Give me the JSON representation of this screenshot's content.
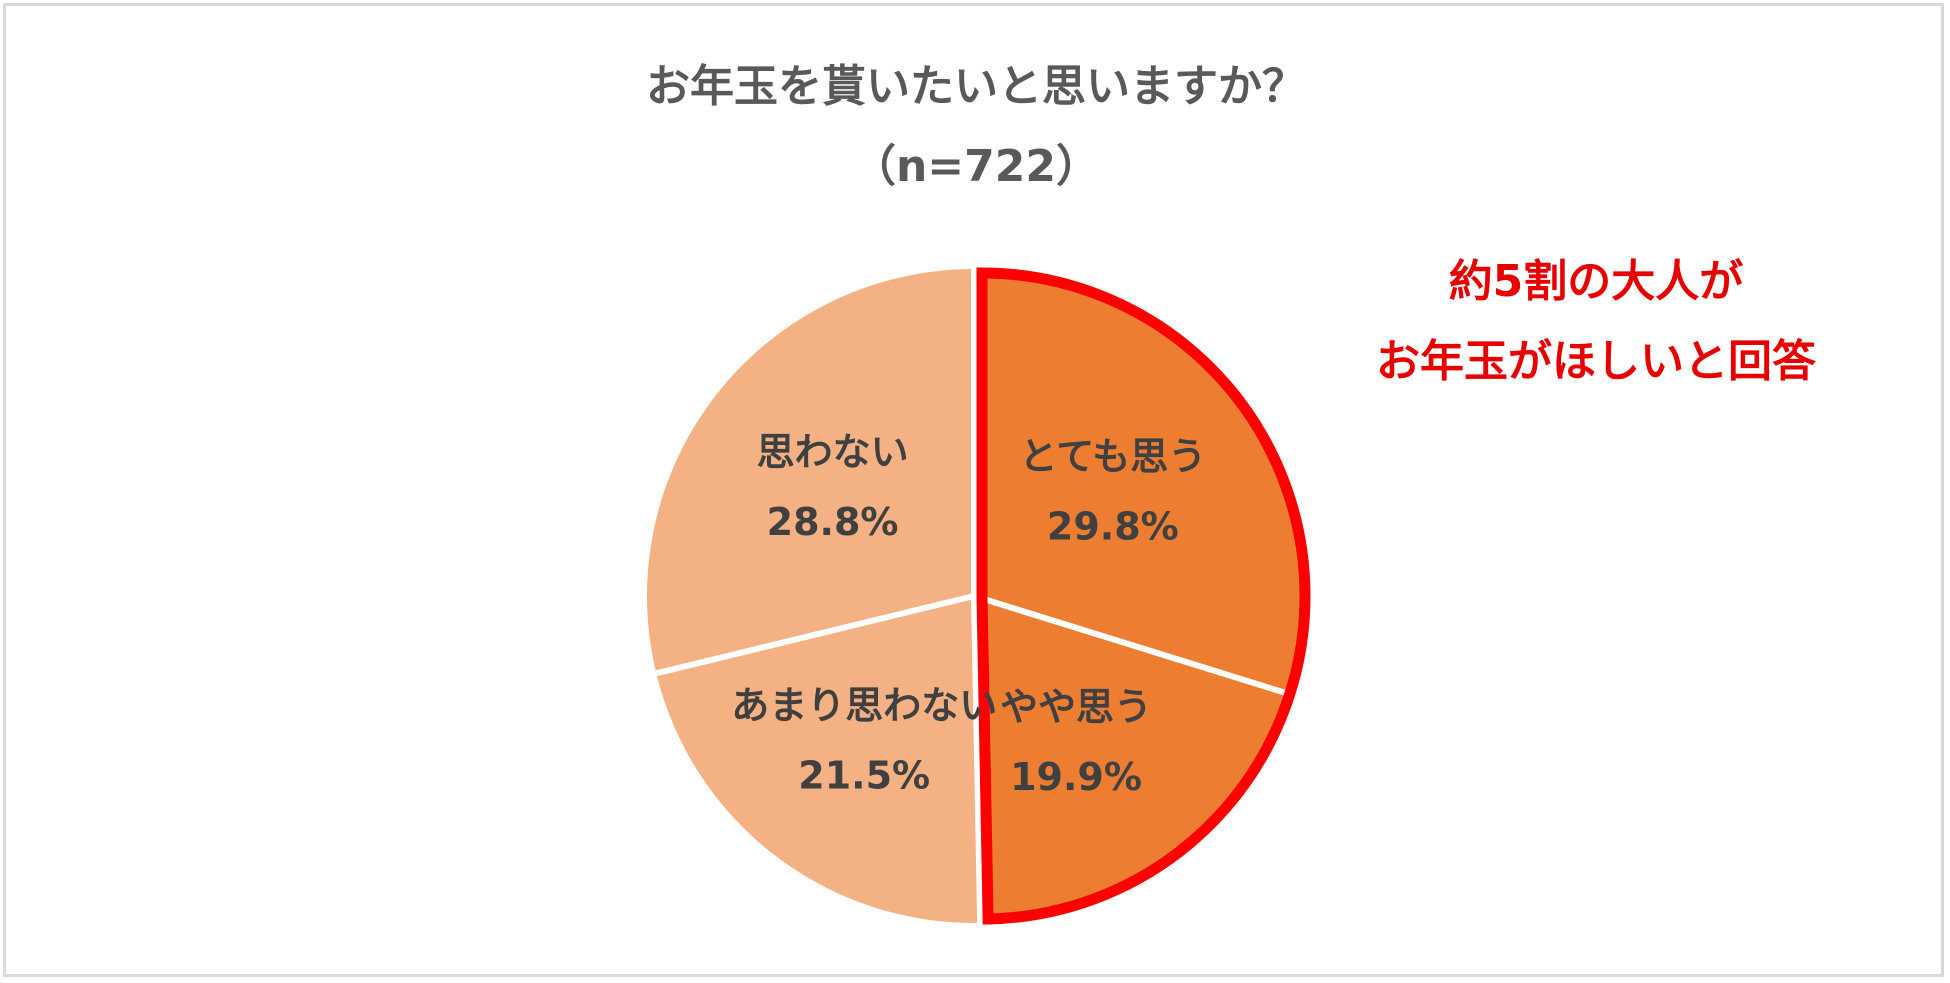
{
  "chart_data": {
    "type": "pie",
    "title": "お年玉を貰いたいと思いますか？",
    "subtitle": "（n=722）",
    "slices": [
      {
        "label": "とても思う",
        "value": 29.8,
        "value_label": "29.8%",
        "color": "#ED7D31"
      },
      {
        "label": "やや思う",
        "value": 19.9,
        "value_label": "19.9%",
        "color": "#ED7D31"
      },
      {
        "label": "あまり思わない",
        "value": 21.5,
        "value_label": "21.5%",
        "color": "#F4B183"
      },
      {
        "label": "思わない",
        "value": 28.8,
        "value_label": "28.8%",
        "color": "#F4B183"
      }
    ],
    "start_angle": "12 o'clock",
    "direction": "clockwise",
    "highlight": {
      "slices": [
        "とても思う",
        "やや思う"
      ],
      "outline_color": "#FF0000"
    },
    "annotation": {
      "lines": [
        "約5割の大人が",
        "お年玉がほしいと回答"
      ],
      "color": "#E60000"
    },
    "legend": "none"
  }
}
